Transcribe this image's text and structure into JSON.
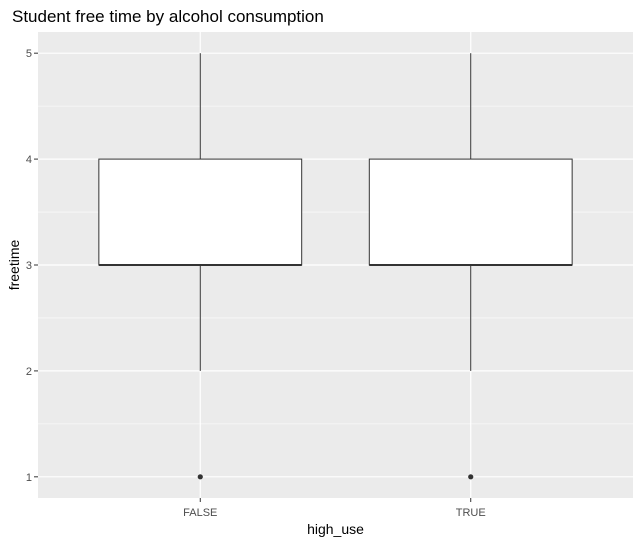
{
  "chart_data": {
    "type": "box",
    "title": "Student free time by alcohol consumption",
    "xlabel": "high_use",
    "ylabel": "freetime",
    "categories": [
      "FALSE",
      "TRUE"
    ],
    "boxes": [
      {
        "category": "FALSE",
        "whisker_low": 2,
        "q1": 3,
        "median": 3,
        "q3": 4,
        "whisker_high": 5,
        "outliers": [
          1
        ]
      },
      {
        "category": "TRUE",
        "whisker_low": 2,
        "q1": 3,
        "median": 3,
        "q3": 4,
        "whisker_high": 5,
        "outliers": [
          1
        ]
      }
    ],
    "yticks": [
      "1",
      "2",
      "3",
      "4",
      "5"
    ],
    "ylim": [
      0.8,
      5.2
    ],
    "grid": true,
    "colors": {
      "panel": "#ebebeb",
      "grid": "#ffffff",
      "box_fill": "#ffffff",
      "box_line": "#333333",
      "point": "#333333",
      "tick": "#333333"
    }
  }
}
